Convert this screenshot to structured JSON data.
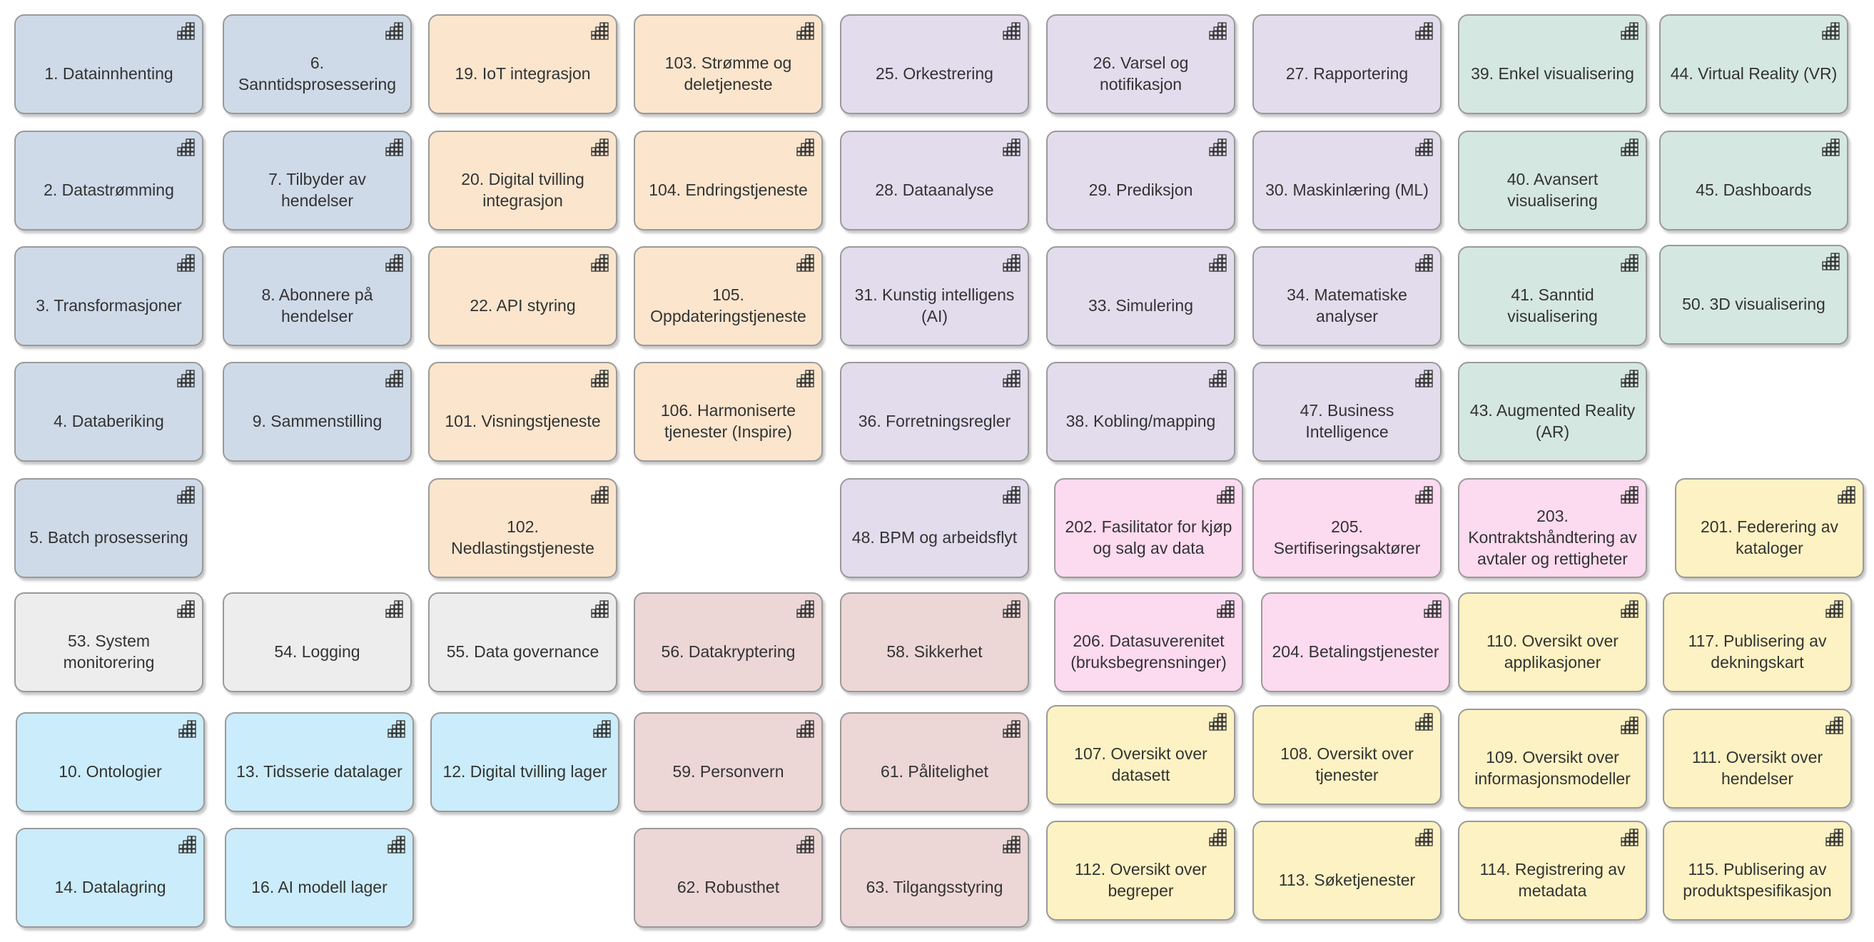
{
  "colors": {
    "blue_grey": "#cfdae8",
    "peach": "#fbe5cd",
    "lavender": "#e2dced",
    "mint": "#d5e7e1",
    "pink": "#fcdaf0",
    "yellow": "#fdf2c3",
    "grey": "#ededed",
    "rose": "#ecd6d6",
    "light_blue": "#cbecfa",
    "border": "#9a9a9a",
    "text": "#333333"
  },
  "icon": "component-grid-icon",
  "components": [
    {
      "id": "c1",
      "label": "1. Datainnhenting",
      "color": "blue_grey"
    },
    {
      "id": "c6",
      "label": "6. Sanntidsprosessering",
      "color": "blue_grey"
    },
    {
      "id": "c19",
      "label": "19. IoT integrasjon",
      "color": "peach"
    },
    {
      "id": "c103",
      "label": "103. Strømme og\ndeletjeneste",
      "color": "peach"
    },
    {
      "id": "c25",
      "label": "25. Orkestrering",
      "color": "lavender"
    },
    {
      "id": "c26",
      "label": "26. Varsel og\nnotifikasjon",
      "color": "lavender"
    },
    {
      "id": "c27",
      "label": "27. Rapportering",
      "color": "lavender"
    },
    {
      "id": "c39",
      "label": "39. Enkel visualisering",
      "color": "mint"
    },
    {
      "id": "c44",
      "label": "44. Virtual Reality (VR)",
      "color": "mint"
    },
    {
      "id": "c2",
      "label": "2. Datastrømming",
      "color": "blue_grey"
    },
    {
      "id": "c7",
      "label": "7. Tilbyder av hendelser",
      "color": "blue_grey"
    },
    {
      "id": "c20",
      "label": "20. Digital tvilling\nintegrasjon",
      "color": "peach"
    },
    {
      "id": "c104",
      "label": "104. Endringstjeneste",
      "color": "peach"
    },
    {
      "id": "c28",
      "label": "28. Dataanalyse",
      "color": "lavender"
    },
    {
      "id": "c29",
      "label": "29. Prediksjon",
      "color": "lavender"
    },
    {
      "id": "c30",
      "label": "30. Maskinlæring (ML)",
      "color": "lavender"
    },
    {
      "id": "c40",
      "label": "40. Avansert\nvisualisering",
      "color": "mint"
    },
    {
      "id": "c45",
      "label": "45. Dashboards",
      "color": "mint"
    },
    {
      "id": "c3",
      "label": "3. Transformasjoner",
      "color": "blue_grey"
    },
    {
      "id": "c8",
      "label": "8. Abonnere på\nhendelser",
      "color": "blue_grey"
    },
    {
      "id": "c22",
      "label": "22. API styring",
      "color": "peach"
    },
    {
      "id": "c105",
      "label": "105.\nOppdateringstjeneste",
      "color": "peach"
    },
    {
      "id": "c31",
      "label": "31. Kunstig intelligens\n(AI)",
      "color": "lavender"
    },
    {
      "id": "c33",
      "label": "33. Simulering",
      "color": "lavender"
    },
    {
      "id": "c34",
      "label": "34. Matematiske\nanalyser",
      "color": "lavender"
    },
    {
      "id": "c41",
      "label": "41. Sanntid\nvisualisering",
      "color": "mint"
    },
    {
      "id": "c50",
      "label": "50. 3D visualisering",
      "color": "mint"
    },
    {
      "id": "c4",
      "label": "4. Databeriking",
      "color": "blue_grey"
    },
    {
      "id": "c9",
      "label": "9. Sammenstilling",
      "color": "blue_grey"
    },
    {
      "id": "c101",
      "label": "101. Visningstjeneste",
      "color": "peach"
    },
    {
      "id": "c106",
      "label": "106. Harmoniserte\ntjenester (Inspire)",
      "color": "peach"
    },
    {
      "id": "c36",
      "label": "36. Forretningsregler",
      "color": "lavender"
    },
    {
      "id": "c38",
      "label": "38. Kobling/mapping",
      "color": "lavender"
    },
    {
      "id": "c47",
      "label": "47. Business\nIntelligence",
      "color": "lavender"
    },
    {
      "id": "c43",
      "label": "43. Augmented Reality\n(AR)",
      "color": "mint"
    },
    {
      "id": "c5",
      "label": "5. Batch prosessering",
      "color": "blue_grey"
    },
    {
      "id": "c102",
      "label": "102.\nNedlastingstjeneste",
      "color": "peach"
    },
    {
      "id": "c48",
      "label": "48. BPM og arbeidsflyt",
      "color": "lavender"
    },
    {
      "id": "c202",
      "label": "202. Fasilitator for kjøp\nog salg av data",
      "color": "pink"
    },
    {
      "id": "c205",
      "label": "205.\nSertifiseringsaktører",
      "color": "pink"
    },
    {
      "id": "c203",
      "label": "203.\nKontraktshåndtering av\navtaler og rettigheter",
      "color": "pink"
    },
    {
      "id": "c201",
      "label": "201. Federering av\nkataloger",
      "color": "yellow"
    },
    {
      "id": "c53",
      "label": "53. System\nmonitorering",
      "color": "grey"
    },
    {
      "id": "c54",
      "label": "54. Logging",
      "color": "grey"
    },
    {
      "id": "c55",
      "label": "55. Data governance",
      "color": "grey"
    },
    {
      "id": "c56",
      "label": "56. Datakryptering",
      "color": "rose"
    },
    {
      "id": "c58",
      "label": "58. Sikkerhet",
      "color": "rose"
    },
    {
      "id": "c206",
      "label": "206. Datasuverenitet\n(bruksbegrensninger)",
      "color": "pink"
    },
    {
      "id": "c204",
      "label": "204. Betalingstjenester",
      "color": "pink"
    },
    {
      "id": "c110",
      "label": "110. Oversikt over\napplikasjoner",
      "color": "yellow"
    },
    {
      "id": "c117",
      "label": "117. Publisering av\ndekningskart",
      "color": "yellow"
    },
    {
      "id": "c10",
      "label": "10. Ontologier",
      "color": "light_blue"
    },
    {
      "id": "c13",
      "label": "13. Tidsserie datalager",
      "color": "light_blue"
    },
    {
      "id": "c12",
      "label": "12. Digital tvilling lager",
      "color": "light_blue"
    },
    {
      "id": "c59",
      "label": "59. Personvern",
      "color": "rose"
    },
    {
      "id": "c61",
      "label": "61. Pålitelighet",
      "color": "rose"
    },
    {
      "id": "c107",
      "label": "107. Oversikt over\ndatasett",
      "color": "yellow"
    },
    {
      "id": "c108",
      "label": "108. Oversikt over\ntjenester",
      "color": "yellow"
    },
    {
      "id": "c109",
      "label": "109. Oversikt over\ninformasjonsmodeller",
      "color": "yellow"
    },
    {
      "id": "c111",
      "label": "111. Oversikt over\nhendelser",
      "color": "yellow"
    },
    {
      "id": "c14",
      "label": "14. Datalagring",
      "color": "light_blue"
    },
    {
      "id": "c16",
      "label": "16. AI modell lager",
      "color": "light_blue"
    },
    {
      "id": "c62",
      "label": "62. Robusthet",
      "color": "rose"
    },
    {
      "id": "c63",
      "label": "63. Tilgangsstyring",
      "color": "rose"
    },
    {
      "id": "c112",
      "label": "112. Oversikt over\nbegreper",
      "color": "yellow"
    },
    {
      "id": "c113",
      "label": "113. Søketjenester",
      "color": "yellow"
    },
    {
      "id": "c114",
      "label": "114. Registrering av\nmetadata",
      "color": "yellow"
    },
    {
      "id": "c115",
      "label": "115. Publisering av\nproduktspesifikasjon",
      "color": "yellow"
    }
  ]
}
